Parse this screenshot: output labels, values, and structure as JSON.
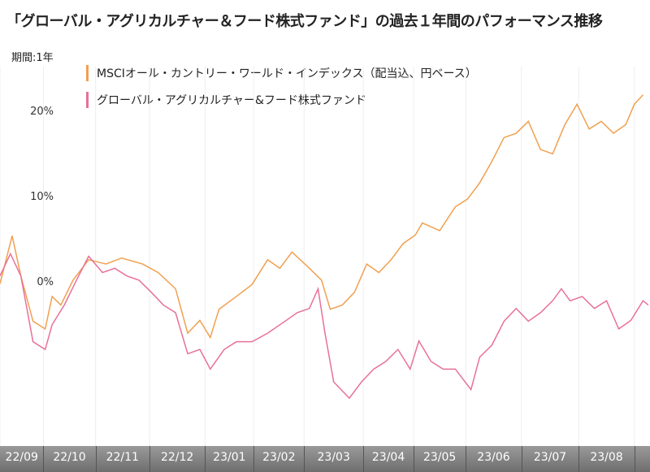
{
  "title": "「グローバル・アグリカルチャー＆フード株式ファンド」の過去１年間のパフォーマンス推移",
  "chart_data": {
    "type": "line",
    "title": "「グローバル・アグリカルチャー＆フード株式ファンド」の過去１年間のパフォーマンス推移",
    "period_label": "期間:1年",
    "xlabel": "",
    "ylabel": "",
    "x_unit": "days since start",
    "xlim": [
      0,
      374
    ],
    "ylim": [
      -19,
      25.4
    ],
    "yticks": [
      {
        "v": 20,
        "label": "20%"
      },
      {
        "v": 10,
        "label": "10%"
      },
      {
        "v": 0,
        "label": "0%"
      }
    ],
    "month_boundaries": [
      0,
      25,
      55,
      86,
      118,
      146,
      175,
      209,
      238,
      268,
      300,
      333,
      365
    ],
    "xtick_labels": [
      "22/09",
      "22/10",
      "22/11",
      "22/12",
      "23/01",
      "23/02",
      "23/03",
      "23/04",
      "23/05",
      "23/06",
      "23/07",
      "23/08"
    ],
    "grid": true,
    "legend_placement": "top-left",
    "series": [
      {
        "name": "MSCIオール・カントリー・ワールド・インデックス（配当込、円ベース）",
        "color": "#f0a050",
        "points": [
          [
            0,
            0
          ],
          [
            7,
            5.6
          ],
          [
            12,
            0.9
          ],
          [
            19,
            -4.4
          ],
          [
            26,
            -5.3
          ],
          [
            30,
            -1.5
          ],
          [
            35,
            -2.5
          ],
          [
            42,
            0.4
          ],
          [
            51,
            2.8
          ],
          [
            61,
            2.3
          ],
          [
            70,
            3
          ],
          [
            82,
            2.3
          ],
          [
            91,
            1.3
          ],
          [
            101,
            -0.6
          ],
          [
            108,
            -5.8
          ],
          [
            115,
            -4.3
          ],
          [
            121,
            -6.3
          ],
          [
            126,
            -3
          ],
          [
            136,
            -1.5
          ],
          [
            145,
            -0.1
          ],
          [
            154,
            2.8
          ],
          [
            161,
            1.8
          ],
          [
            168,
            3.7
          ],
          [
            178,
            1.8
          ],
          [
            185,
            0.4
          ],
          [
            190,
            -3
          ],
          [
            197,
            -2.5
          ],
          [
            204,
            -1
          ],
          [
            211,
            2.3
          ],
          [
            218,
            1.3
          ],
          [
            225,
            2.8
          ],
          [
            232,
            4.7
          ],
          [
            239,
            5.7
          ],
          [
            243,
            7.1
          ],
          [
            253,
            6.2
          ],
          [
            262,
            9
          ],
          [
            269,
            9.9
          ],
          [
            276,
            11.8
          ],
          [
            283,
            14.3
          ],
          [
            290,
            17.1
          ],
          [
            297,
            17.6
          ],
          [
            304,
            19
          ],
          [
            311,
            15.7
          ],
          [
            318,
            15.2
          ],
          [
            325,
            18.6
          ],
          [
            332,
            21
          ],
          [
            339,
            18.1
          ],
          [
            346,
            19
          ],
          [
            353,
            17.6
          ],
          [
            360,
            18.6
          ],
          [
            365,
            21
          ],
          [
            370,
            22.1
          ]
        ]
      },
      {
        "name": "グローバル・アグリカルチャー&フード株式ファンド",
        "color": "#e8709a",
        "points": [
          [
            0,
            0.9
          ],
          [
            6,
            3.5
          ],
          [
            12,
            0.9
          ],
          [
            19,
            -6.8
          ],
          [
            26,
            -7.7
          ],
          [
            30,
            -4.8
          ],
          [
            37,
            -2.5
          ],
          [
            44,
            0.4
          ],
          [
            51,
            3.2
          ],
          [
            59,
            1.3
          ],
          [
            66,
            1.8
          ],
          [
            73,
            0.9
          ],
          [
            80,
            0.4
          ],
          [
            87,
            -1
          ],
          [
            94,
            -2.5
          ],
          [
            101,
            -3.4
          ],
          [
            108,
            -8.2
          ],
          [
            115,
            -7.7
          ],
          [
            121,
            -10
          ],
          [
            129,
            -7.7
          ],
          [
            136,
            -6.8
          ],
          [
            145,
            -6.8
          ],
          [
            154,
            -5.8
          ],
          [
            164,
            -4.4
          ],
          [
            171,
            -3.4
          ],
          [
            178,
            -2.9
          ],
          [
            183,
            -0.6
          ],
          [
            187,
            -5.8
          ],
          [
            192,
            -11.5
          ],
          [
            201,
            -13.4
          ],
          [
            208,
            -11.5
          ],
          [
            215,
            -10
          ],
          [
            222,
            -9.1
          ],
          [
            229,
            -7.7
          ],
          [
            236,
            -10
          ],
          [
            241,
            -6.7
          ],
          [
            248,
            -9.1
          ],
          [
            255,
            -10
          ],
          [
            262,
            -10
          ],
          [
            271,
            -12.4
          ],
          [
            276,
            -8.6
          ],
          [
            283,
            -7.2
          ],
          [
            290,
            -4.4
          ],
          [
            297,
            -2.9
          ],
          [
            304,
            -4.4
          ],
          [
            311,
            -3.4
          ],
          [
            318,
            -2
          ],
          [
            323,
            -0.6
          ],
          [
            328,
            -2
          ],
          [
            335,
            -1.5
          ],
          [
            342,
            -2.9
          ],
          [
            349,
            -2
          ],
          [
            356,
            -5.3
          ],
          [
            363,
            -4.3
          ],
          [
            370,
            -2
          ],
          [
            373,
            -2.5
          ]
        ]
      }
    ]
  }
}
